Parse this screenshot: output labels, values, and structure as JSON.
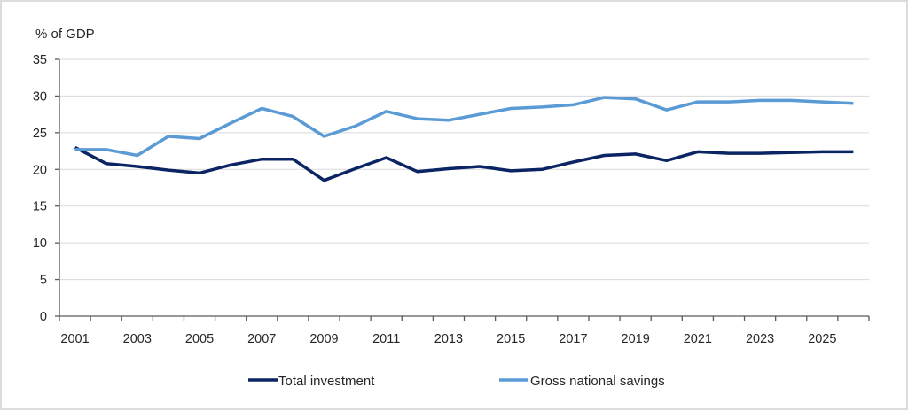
{
  "chart_data": {
    "type": "line",
    "title": "",
    "ylabel": "% of GDP",
    "xlabel": "",
    "ylim": [
      0,
      35
    ],
    "yticks": [
      0,
      5,
      10,
      15,
      20,
      25,
      30,
      35
    ],
    "x": [
      2001,
      2002,
      2003,
      2004,
      2005,
      2006,
      2007,
      2008,
      2009,
      2010,
      2011,
      2012,
      2013,
      2014,
      2015,
      2016,
      2017,
      2018,
      2019,
      2020,
      2021,
      2022,
      2023,
      2024,
      2025,
      2026
    ],
    "xtick_labels": [
      "2001",
      "2003",
      "2005",
      "2007",
      "2009",
      "2011",
      "2013",
      "2015",
      "2017",
      "2019",
      "2021",
      "2023",
      "2025"
    ],
    "grid": "horizontal",
    "legend_position": "bottom",
    "series": [
      {
        "name": "Total investment",
        "color": "#0b2463",
        "values": [
          23.0,
          20.8,
          20.4,
          19.9,
          19.5,
          20.6,
          21.4,
          21.4,
          18.5,
          20.1,
          21.6,
          19.7,
          20.1,
          20.4,
          19.8,
          20.0,
          21.0,
          21.9,
          22.1,
          21.2,
          22.4,
          22.2,
          22.2,
          22.3,
          22.4,
          22.4
        ]
      },
      {
        "name": "Gross national savings",
        "color": "#5b9bd5",
        "values": [
          22.7,
          22.7,
          21.9,
          24.5,
          24.2,
          26.3,
          28.3,
          27.2,
          24.5,
          25.9,
          27.9,
          26.9,
          26.7,
          27.5,
          28.3,
          28.5,
          28.8,
          29.8,
          29.6,
          28.1,
          29.2,
          29.2,
          29.4,
          29.4,
          29.2,
          29.0
        ]
      }
    ]
  }
}
